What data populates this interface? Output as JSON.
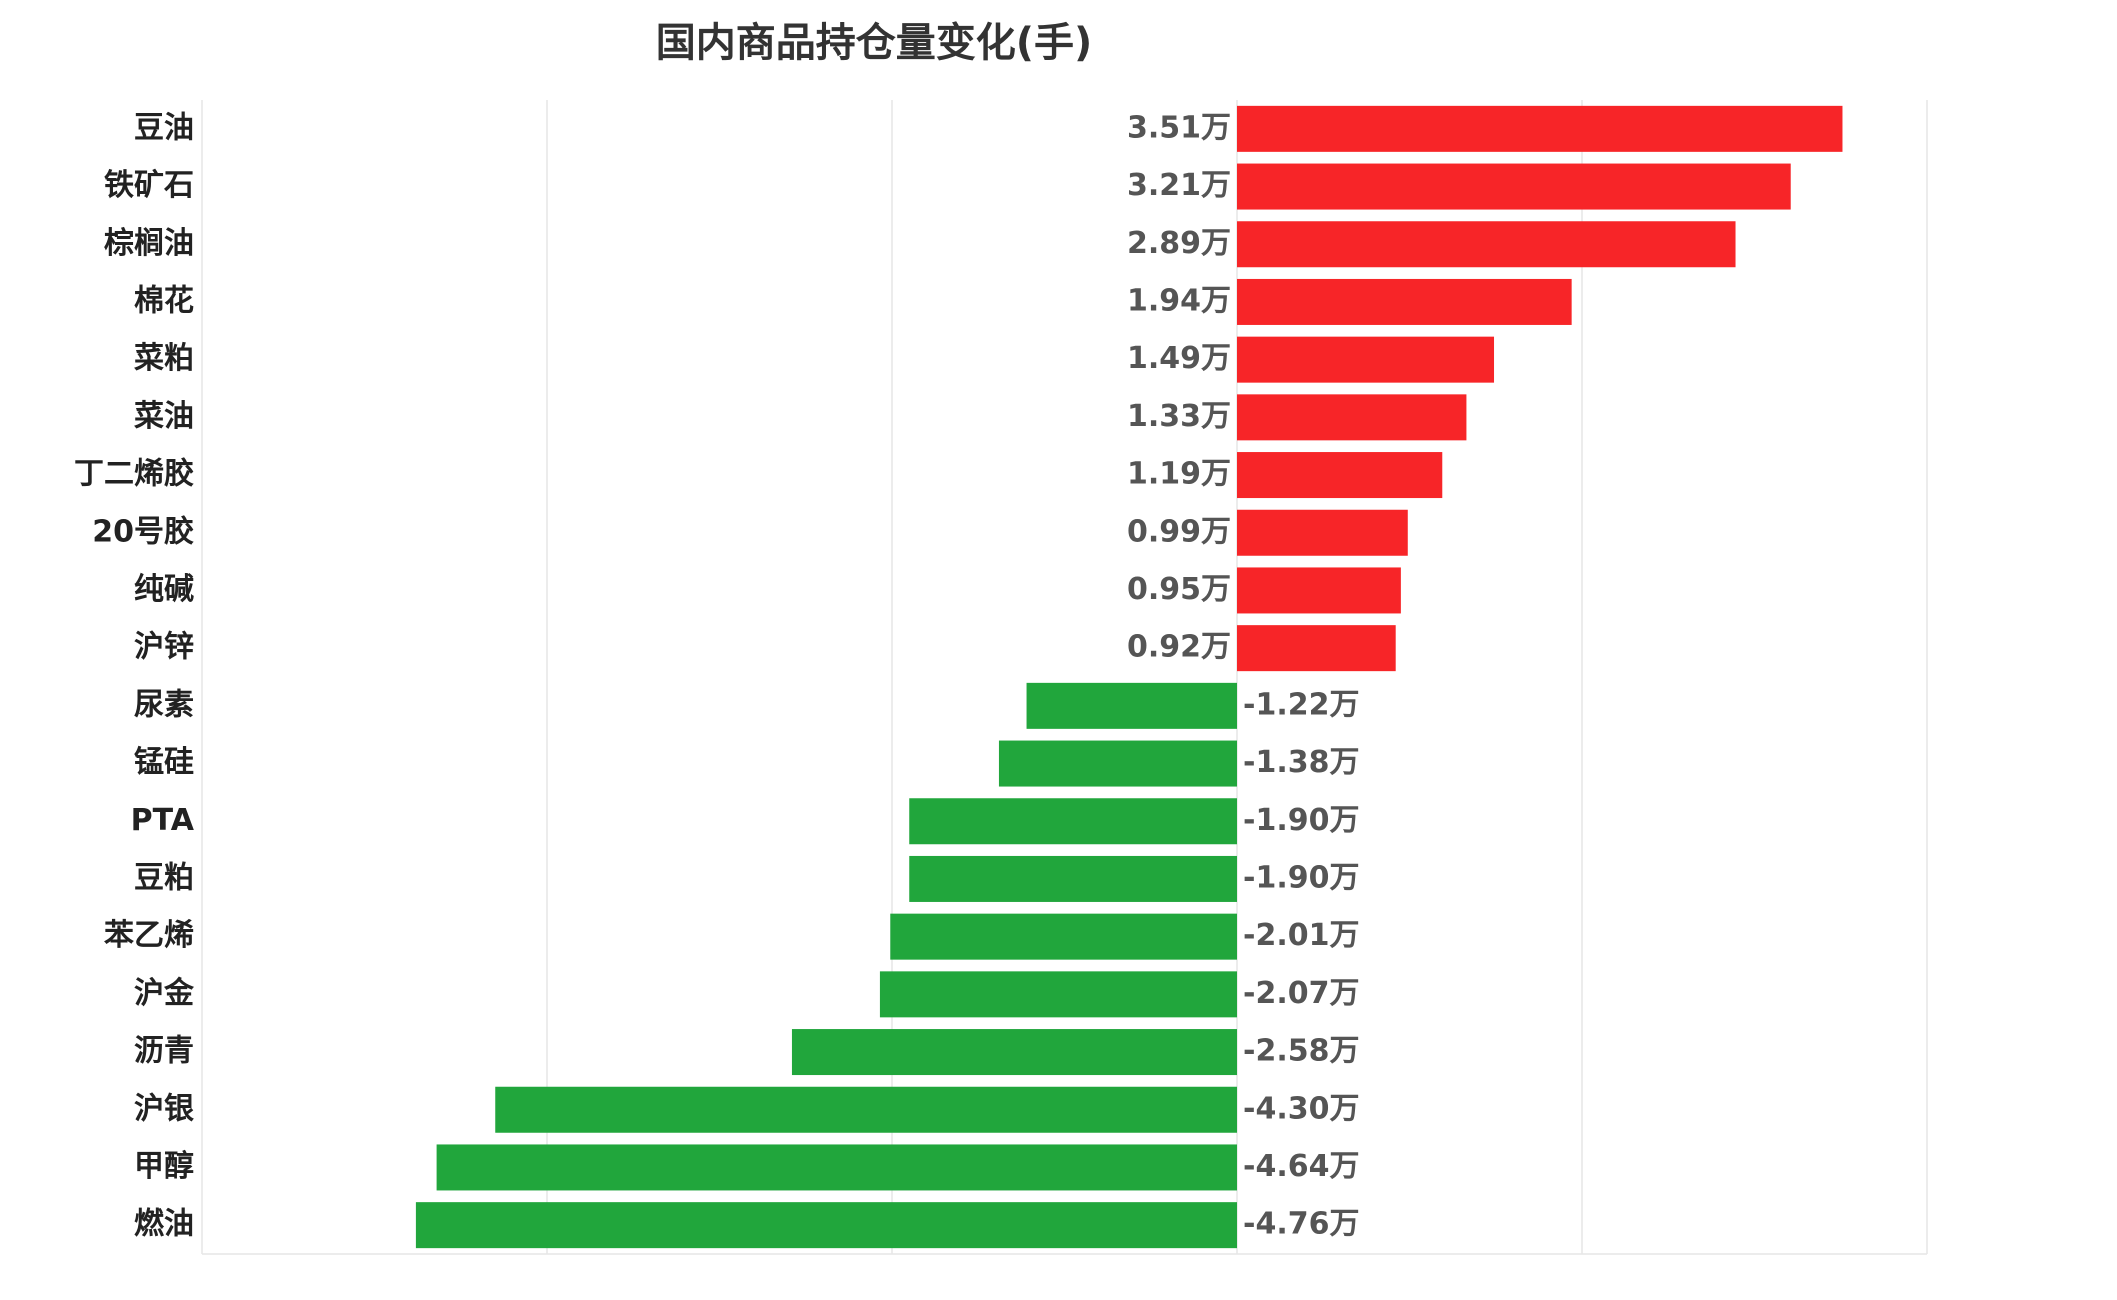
{
  "chart_data": {
    "type": "bar",
    "orientation": "horizontal",
    "title": "国内商品持仓量变化(手)",
    "categories": [
      "豆油",
      "铁矿石",
      "棕榈油",
      "棉花",
      "菜粕",
      "菜油",
      "丁二烯胶",
      "20号胶",
      "纯碱",
      "沪锌",
      "尿素",
      "锰硅",
      "PTA",
      "豆粕",
      "苯乙烯",
      "沪金",
      "沥青",
      "沪银",
      "甲醇",
      "燃油"
    ],
    "values": [
      3.51,
      3.21,
      2.89,
      1.94,
      1.49,
      1.33,
      1.19,
      0.99,
      0.95,
      0.92,
      -1.22,
      -1.38,
      -1.9,
      -1.9,
      -2.01,
      -2.07,
      -2.58,
      -4.3,
      -4.64,
      -4.76
    ],
    "value_labels": [
      "3.51万",
      "3.21万",
      "2.89万",
      "1.94万",
      "1.49万",
      "1.33万",
      "1.19万",
      "0.99万",
      "0.95万",
      "0.92万",
      "-1.22万",
      "-1.38万",
      "-1.90万",
      "-1.90万",
      "-2.01万",
      "-2.07万",
      "-2.58万",
      "-4.30万",
      "-4.64万",
      "-4.76万"
    ],
    "positive_color": "#f72528",
    "negative_color": "#21a63c",
    "xlim": [
      -6,
      4
    ],
    "xticks": [
      -6,
      -4,
      -2,
      0,
      2,
      4
    ],
    "grid": true
  }
}
